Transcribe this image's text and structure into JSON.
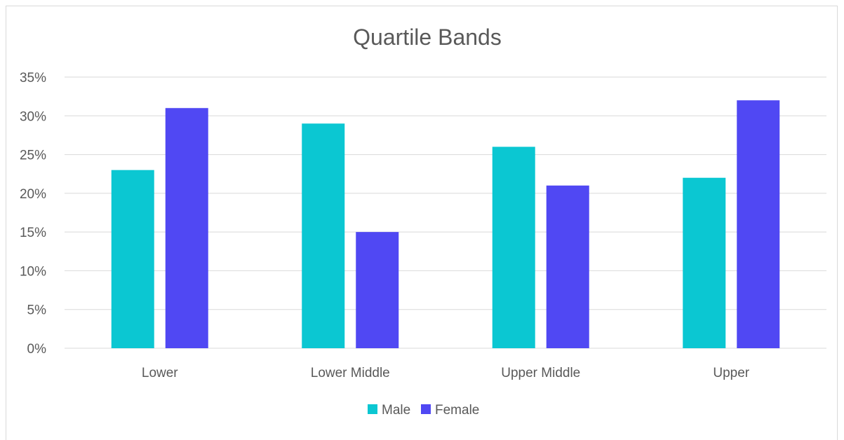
{
  "chart_data": {
    "type": "bar",
    "title": "Quartile Bands",
    "xlabel": "",
    "ylabel": "",
    "categories": [
      "Lower",
      "Lower Middle",
      "Upper Middle",
      "Upper"
    ],
    "series": [
      {
        "name": "Male",
        "values": [
          23,
          29,
          26,
          22
        ],
        "color": "#0bc7d2"
      },
      {
        "name": "Female",
        "values": [
          31,
          15,
          21,
          32
        ],
        "color": "#5048f3"
      }
    ],
    "ylim": [
      0,
      35
    ],
    "yticks": [
      0,
      5,
      10,
      15,
      20,
      25,
      30,
      35
    ],
    "ytick_labels": [
      "0%",
      "5%",
      "10%",
      "15%",
      "20%",
      "25%",
      "30%",
      "35%"
    ],
    "y_unit": "%",
    "grid": "horizontal",
    "legend_position": "bottom"
  }
}
